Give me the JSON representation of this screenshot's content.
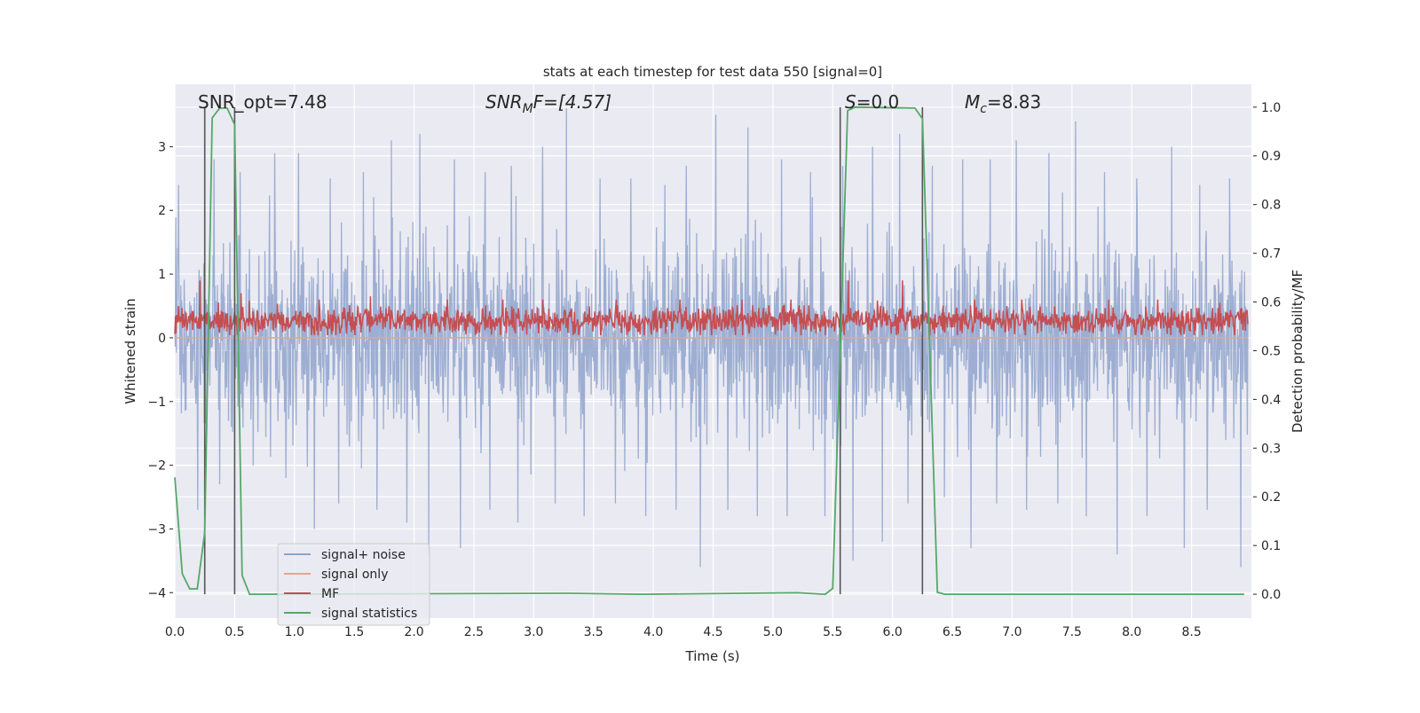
{
  "chart_data": {
    "type": "line",
    "title": "stats at each timestep for test data 550 [signal=0]",
    "xlabel": "Time (s)",
    "ylabel": "Whitened strain",
    "ylabel_right": "Detection probability/MF",
    "xlim": [
      0,
      9.0
    ],
    "ylim": [
      -4.4,
      3.98
    ],
    "ylim_right": [
      -0.049,
      1.047
    ],
    "grid": true,
    "background": "#eaeaf2",
    "legend_position": "lower-left",
    "xticks": [
      "0.0",
      "0.5",
      "1.0",
      "1.5",
      "2.0",
      "2.5",
      "3.0",
      "3.5",
      "4.0",
      "4.5",
      "5.0",
      "5.5",
      "6.0",
      "6.5",
      "7.0",
      "7.5",
      "8.0",
      "8.5"
    ],
    "yticks_left": [
      "−4",
      "−3",
      "−2",
      "−1",
      "0",
      "1",
      "2",
      "3"
    ],
    "yticks_right": [
      "0.0",
      "0.1",
      "0.2",
      "0.3",
      "0.4",
      "0.5",
      "0.6",
      "0.7",
      "0.8",
      "0.9",
      "1.0"
    ],
    "annotations": {
      "snr_opt": "SNR_opt=7.48",
      "snr_mf_main": "SNR",
      "snr_mf_sub": "M",
      "snr_mf_rest": "F=[4.57]",
      "s_main": "S",
      "s_rest": "=0.0",
      "mc_main": "M",
      "mc_sub": "c",
      "mc_rest": "=8.83"
    },
    "series": [
      {
        "name": "signal+ noise",
        "color": "#8fa3cc",
        "axis": "left",
        "bin_width_s": 0.25,
        "bin_max": [
          2.4,
          2.8,
          2.6,
          2.9,
          2.9,
          2.5,
          2.6,
          3.1,
          3.2,
          2.8,
          2.6,
          2.7,
          3.0,
          3.6,
          2.5,
          2.5,
          2.4,
          2.7,
          3.5,
          3.3,
          2.8,
          2.6,
          2.7,
          3.0,
          3.2,
          2.7,
          2.8,
          2.8,
          3.1,
          2.9,
          3.4,
          2.6,
          2.5,
          3.0,
          2.4,
          2.5
        ],
        "bin_min": [
          -2.7,
          -2.3,
          -2.0,
          -2.2,
          -3.0,
          -2.6,
          -2.7,
          -2.9,
          -3.4,
          -3.3,
          -2.7,
          -2.9,
          -2.6,
          -2.8,
          -2.6,
          -2.8,
          -2.7,
          -3.6,
          -2.7,
          -2.8,
          -2.8,
          -2.8,
          -3.5,
          -3.2,
          -2.6,
          -2.5,
          -3.3,
          -2.6,
          -2.7,
          -2.6,
          -2.8,
          -3.4,
          -2.8,
          -3.3,
          -2.7,
          -3.6
        ]
      },
      {
        "name": "signal only",
        "color": "#e8a58c",
        "axis": "left",
        "value": 0.0
      },
      {
        "name": "MF",
        "color": "#c44e52",
        "axis": "left",
        "bin_width_s": 0.5,
        "bin_max": [
          0.9,
          0.7,
          0.6,
          0.65,
          0.6,
          0.6,
          0.6,
          0.6,
          0.6,
          0.6,
          0.6,
          0.9,
          0.9,
          0.6,
          0.6,
          0.6,
          0.6,
          0.55
        ]
      },
      {
        "name": "signal statistics",
        "color": "#55a868",
        "axis": "right",
        "x": [
          0,
          0.0625,
          0.125,
          0.1875,
          0.25,
          0.3125,
          0.375,
          0.4375,
          0.5,
          0.5625,
          0.625,
          3.3,
          3.9,
          5.2,
          5.4375,
          5.5,
          5.625,
          5.6875,
          6.1875,
          6.25,
          6.375,
          6.4375,
          8.94
        ],
        "y": [
          0.24,
          0.042,
          0.011,
          0.011,
          0.127,
          0.978,
          0.998,
          0.998,
          0.964,
          0.039,
          0.0,
          0.002,
          0.0,
          0.003,
          0.0,
          0.012,
          0.993,
          1.0,
          0.998,
          0.976,
          0.004,
          0.0,
          0.0
        ]
      }
    ],
    "vlines": {
      "color": "#555555",
      "x": [
        0.25,
        0.5,
        5.5625,
        6.25
      ],
      "ymin_right": 0.0,
      "ymax_right": 1.0
    }
  }
}
